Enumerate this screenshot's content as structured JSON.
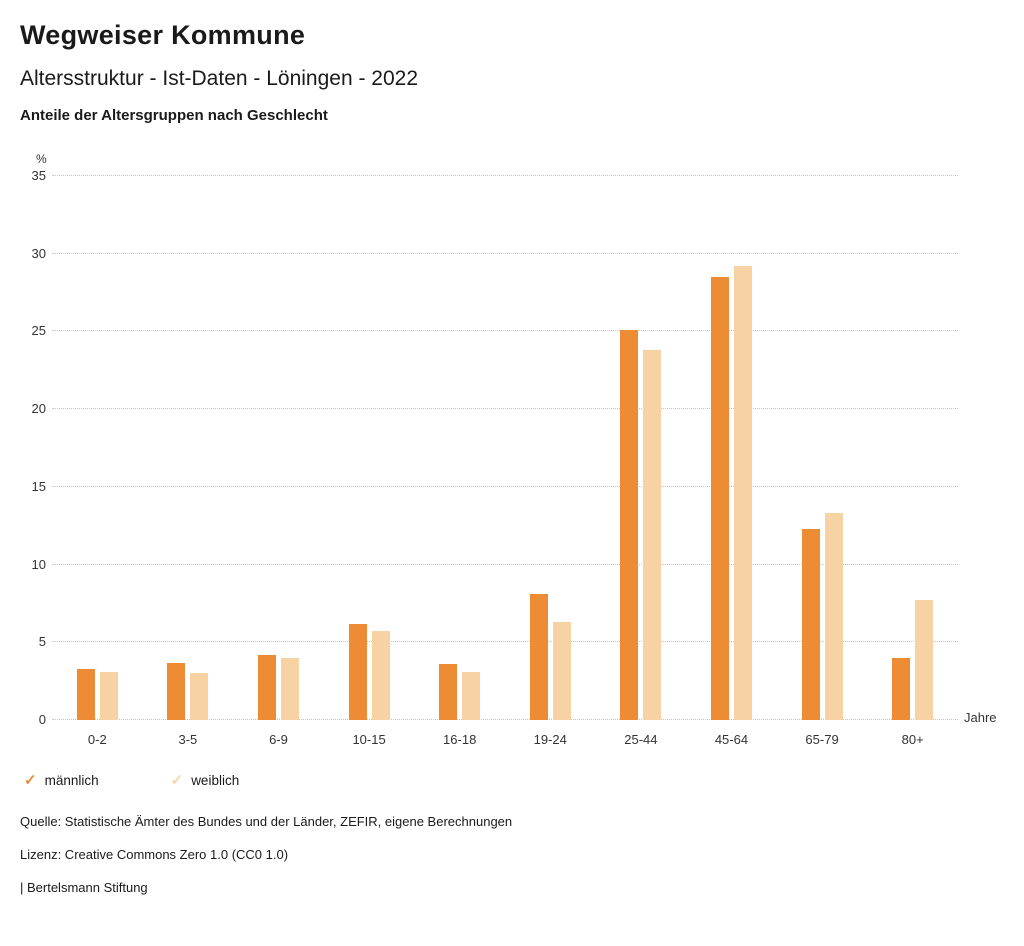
{
  "header": {
    "title": "Wegweiser Kommune",
    "subtitle": "Altersstruktur - Ist-Daten - Löningen - 2022",
    "chart_title": "Anteile der Altersgruppen nach Geschlecht"
  },
  "chart_data": {
    "type": "bar",
    "title": "Anteile der Altersgruppen nach Geschlecht",
    "unit": "%",
    "xlabel": "Jahre",
    "ylabel": "%",
    "ylim": [
      0,
      35
    ],
    "yticks": [
      0,
      5,
      10,
      15,
      20,
      25,
      30,
      35
    ],
    "grid": true,
    "grid_style": "dotted",
    "legend_position": "bottom",
    "categories": [
      "0-2",
      "3-5",
      "6-9",
      "10-15",
      "16-18",
      "19-24",
      "25-44",
      "45-64",
      "65-79",
      "80+"
    ],
    "series": [
      {
        "name": "männlich",
        "color": "#ED8C35",
        "values": [
          3.3,
          3.7,
          4.2,
          6.2,
          3.6,
          8.1,
          25.1,
          28.5,
          12.3,
          4.0
        ]
      },
      {
        "name": "weiblich",
        "color": "#F7D3A4",
        "values": [
          3.1,
          3.0,
          4.0,
          5.7,
          3.1,
          6.3,
          23.8,
          29.2,
          13.3,
          7.7
        ]
      }
    ]
  },
  "legend": {
    "check_icon": "✓",
    "items": [
      {
        "label": "männlich",
        "color": "#ED8C35"
      },
      {
        "label": "weiblich",
        "color": "#F7D3A4"
      }
    ]
  },
  "footer": {
    "source": "Quelle: Statistische Ämter des Bundes und der Länder, ZEFIR, eigene Berechnungen",
    "license": "Lizenz: Creative Commons Zero 1.0 (CC0 1.0)",
    "attribution": "| Bertelsmann Stiftung"
  }
}
